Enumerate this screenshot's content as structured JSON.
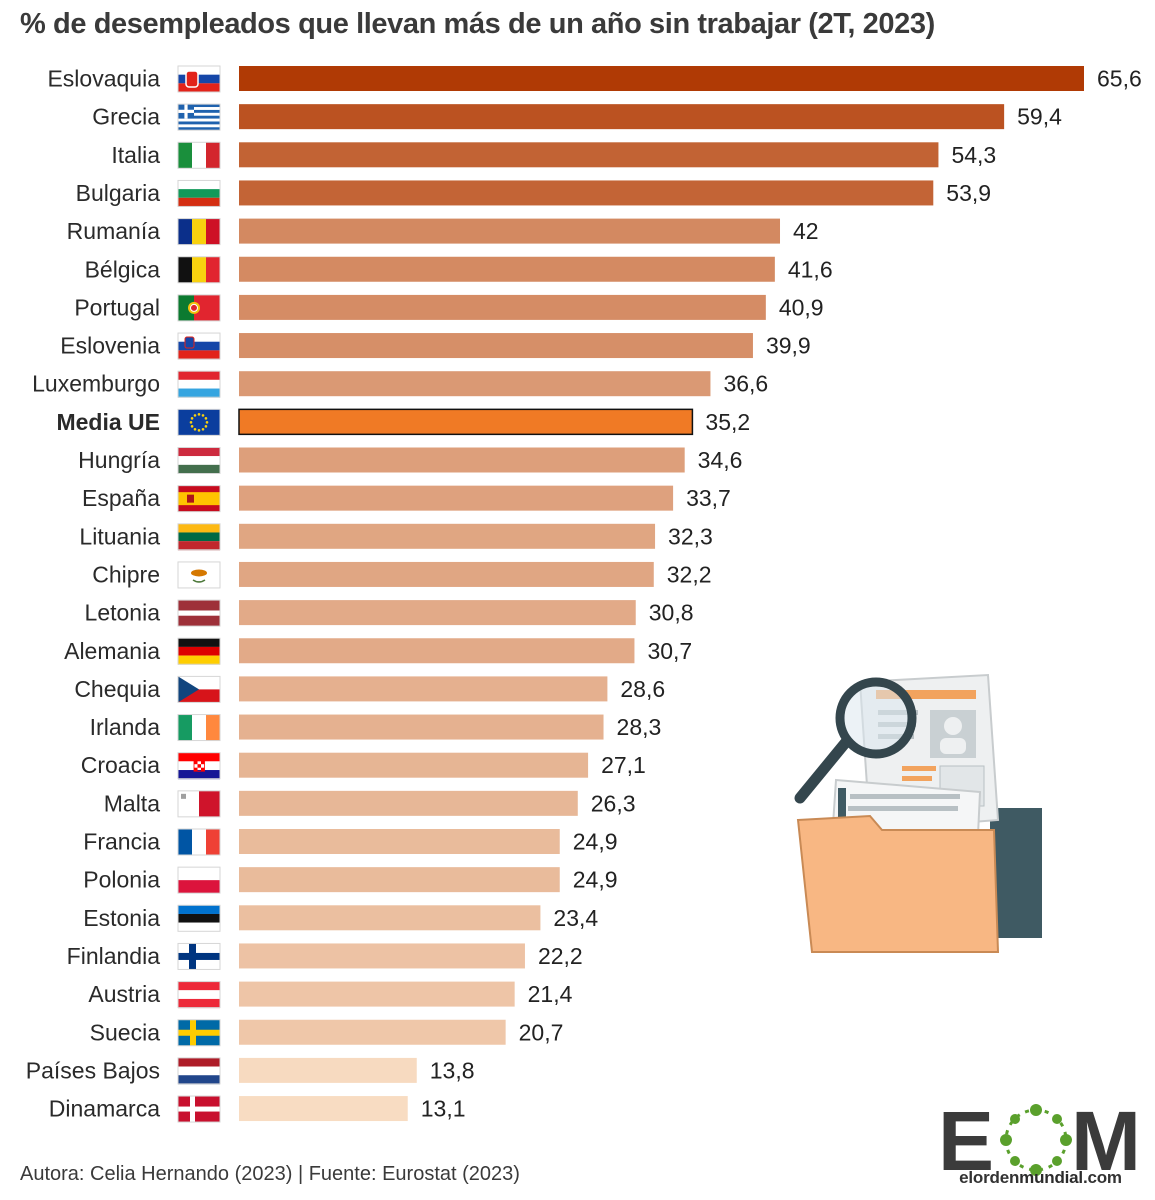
{
  "title": "% de desempleados que llevan más de un año sin trabajar (2T, 2023)",
  "footer": "Autora: Celia Hernando (2023) | Fuente: Eurostat (2023)",
  "logo": {
    "letters": "EOM",
    "url_prefix": "elorden",
    "url_accent": "mundial",
    "url_suffix": ".com"
  },
  "colors": {
    "dark": "#b03a05",
    "light": "#f8dcc2",
    "average_fill": "#f07a25",
    "average_border": "#111111",
    "label": "#222222"
  },
  "chart_data": {
    "type": "bar",
    "orientation": "horizontal",
    "title": "% de desempleados que llevan más de un año sin trabajar (2T, 2023)",
    "xlim": [
      0,
      65.6
    ],
    "highlight": "Media UE",
    "categories": [
      "Eslovaquia",
      "Grecia",
      "Italia",
      "Bulgaria",
      "Rumanía",
      "Bélgica",
      "Portugal",
      "Eslovenia",
      "Luxemburgo",
      "Media UE",
      "Hungría",
      "España",
      "Lituania",
      "Chipre",
      "Letonia",
      "Alemania",
      "Chequia",
      "Irlanda",
      "Croacia",
      "Malta",
      "Francia",
      "Polonia",
      "Estonia",
      "Finlandia",
      "Austria",
      "Suecia",
      "Países Bajos",
      "Dinamarca"
    ],
    "values": [
      65.6,
      59.4,
      54.3,
      53.9,
      42,
      41.6,
      40.9,
      39.9,
      36.6,
      35.2,
      34.6,
      33.7,
      32.3,
      32.2,
      30.8,
      30.7,
      28.6,
      28.3,
      27.1,
      26.3,
      24.9,
      24.9,
      23.4,
      22.2,
      21.4,
      20.7,
      13.8,
      13.1
    ],
    "value_labels": [
      "65,6",
      "59,4",
      "54,3",
      "53,9",
      "42",
      "41,6",
      "40,9",
      "39,9",
      "36,6",
      "35,2",
      "34,6",
      "33,7",
      "32,3",
      "32,2",
      "30,8",
      "30,7",
      "28,6",
      "28,3",
      "27,1",
      "26,3",
      "24,9",
      "24,9",
      "23,4",
      "22,2",
      "21,4",
      "20,7",
      "13,8",
      "13,1"
    ],
    "flags": [
      "flag-slovakia-icon",
      "flag-greece-icon",
      "flag-italy-icon",
      "flag-bulgaria-icon",
      "flag-romania-icon",
      "flag-belgium-icon",
      "flag-portugal-icon",
      "flag-slovenia-icon",
      "flag-luxembourg-icon",
      "flag-eu-icon",
      "flag-hungary-icon",
      "flag-spain-icon",
      "flag-lithuania-icon",
      "flag-cyprus-icon",
      "flag-latvia-icon",
      "flag-germany-icon",
      "flag-czechia-icon",
      "flag-ireland-icon",
      "flag-croatia-icon",
      "flag-malta-icon",
      "flag-france-icon",
      "flag-poland-icon",
      "flag-estonia-icon",
      "flag-finland-icon",
      "flag-austria-icon",
      "flag-sweden-icon",
      "flag-netherlands-icon",
      "flag-denmark-icon"
    ],
    "grid": false,
    "legend": "none"
  }
}
